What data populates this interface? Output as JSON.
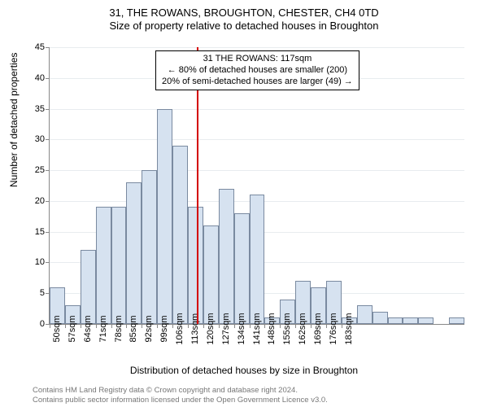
{
  "title_line1": "31, THE ROWANS, BROUGHTON, CHESTER, CH4 0TD",
  "title_line2": "Size of property relative to detached houses in Broughton",
  "y_axis_label": "Number of detached properties",
  "x_axis_label": "Distribution of detached houses by size in Broughton",
  "footer_line1": "Contains HM Land Registry data © Crown copyright and database right 2024.",
  "footer_line2": "Contains public sector information licensed under the Open Government Licence v3.0.",
  "chart": {
    "type": "histogram",
    "background_color": "#ffffff",
    "grid_color": "#e8ecef",
    "axis_color": "#888888",
    "bar_fill": "#d6e2f0",
    "bar_border": "#7a8aa0",
    "bar_width_ratio": 1.0,
    "ylim": [
      0,
      45
    ],
    "ytick_step": 5,
    "x_start": 50,
    "x_step": 7,
    "x_count": 20,
    "x_unit": "sqm",
    "label_fontsize": 11,
    "axis_title_fontsize": 12,
    "values": [
      6,
      3,
      12,
      19,
      19,
      23,
      25,
      35,
      29,
      19,
      16,
      22,
      18,
      21,
      1,
      4,
      7,
      6,
      7,
      1,
      3,
      2,
      1,
      1,
      1,
      0,
      1
    ],
    "reference_line": {
      "x_value": 117,
      "color": "#d40000",
      "width": 2
    },
    "annotation": {
      "line1": "31 THE ROWANS: 117sqm",
      "line2": "← 80% of detached houses are smaller (200)",
      "line3": "20% of semi-detached houses are larger (49) →",
      "font_size": 11,
      "border_color": "#000000",
      "background": "#ffffff"
    }
  }
}
